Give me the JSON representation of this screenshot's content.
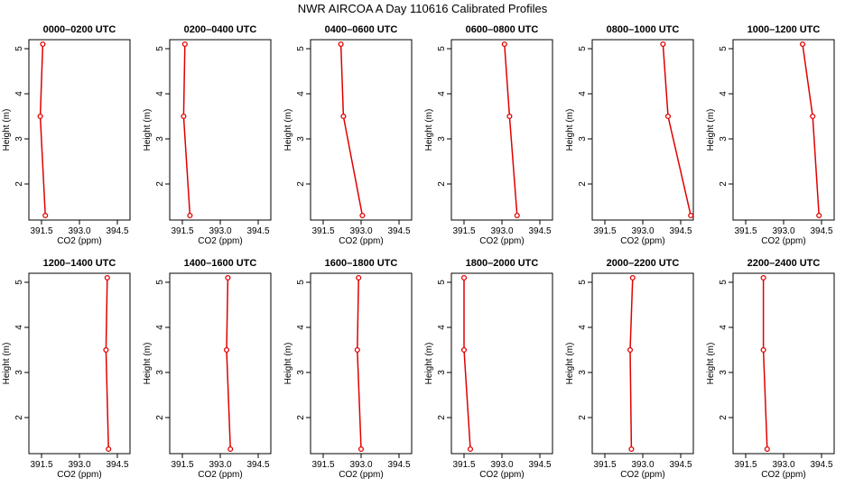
{
  "title": "NWR AIRCOA A  Day 110616  Calibrated Profiles",
  "series_color": "#e00000",
  "chart_data": [
    {
      "type": "line",
      "title": "0000–0200 UTC",
      "xlabel": "CO2 (ppm)",
      "ylabel": "Height (m)",
      "xlim": [
        391.0,
        395.0
      ],
      "ylim": [
        1.2,
        5.2
      ],
      "xticks": [
        "391.5",
        "393.0",
        "394.5"
      ],
      "yticks": [
        "2",
        "3",
        "4",
        "5"
      ],
      "grid": false,
      "x": [
        391.55,
        391.45,
        391.65
      ],
      "y": [
        5.1,
        3.5,
        1.3
      ]
    },
    {
      "type": "line",
      "title": "0200–0400 UTC",
      "xlabel": "CO2 (ppm)",
      "ylabel": "Height (m)",
      "xlim": [
        391.0,
        395.0
      ],
      "ylim": [
        1.2,
        5.2
      ],
      "xticks": [
        "391.5",
        "393.0",
        "394.5"
      ],
      "yticks": [
        "2",
        "3",
        "4",
        "5"
      ],
      "grid": false,
      "x": [
        391.6,
        391.55,
        391.8
      ],
      "y": [
        5.1,
        3.5,
        1.3
      ]
    },
    {
      "type": "line",
      "title": "0400–0600 UTC",
      "xlabel": "CO2 (ppm)",
      "ylabel": "Height (m)",
      "xlim": [
        391.0,
        395.0
      ],
      "ylim": [
        1.2,
        5.2
      ],
      "xticks": [
        "391.5",
        "393.0",
        "394.5"
      ],
      "yticks": [
        "2",
        "3",
        "4",
        "5"
      ],
      "grid": false,
      "x": [
        392.2,
        392.3,
        393.05
      ],
      "y": [
        5.1,
        3.5,
        1.3
      ]
    },
    {
      "type": "line",
      "title": "0600–0800 UTC",
      "xlabel": "CO2 (ppm)",
      "ylabel": "Height (m)",
      "xlim": [
        391.0,
        395.0
      ],
      "ylim": [
        1.2,
        5.2
      ],
      "xticks": [
        "391.5",
        "393.0",
        "394.5"
      ],
      "yticks": [
        "2",
        "3",
        "4",
        "5"
      ],
      "grid": false,
      "x": [
        393.1,
        393.3,
        393.6
      ],
      "y": [
        5.1,
        3.5,
        1.3
      ]
    },
    {
      "type": "line",
      "title": "0800–1000 UTC",
      "xlabel": "CO2 (ppm)",
      "ylabel": "Height (m)",
      "xlim": [
        391.0,
        395.0
      ],
      "ylim": [
        1.2,
        5.2
      ],
      "xticks": [
        "391.5",
        "393.0",
        "394.5"
      ],
      "yticks": [
        "2",
        "3",
        "4",
        "5"
      ],
      "grid": false,
      "x": [
        393.8,
        394.0,
        394.9
      ],
      "y": [
        5.1,
        3.5,
        1.3
      ]
    },
    {
      "type": "line",
      "title": "1000–1200 UTC",
      "xlabel": "CO2 (ppm)",
      "ylabel": "Height (m)",
      "xlim": [
        391.0,
        395.0
      ],
      "ylim": [
        1.2,
        5.2
      ],
      "xticks": [
        "391.5",
        "393.0",
        "394.5"
      ],
      "yticks": [
        "2",
        "3",
        "4",
        "5"
      ],
      "grid": false,
      "x": [
        393.75,
        394.15,
        394.4
      ],
      "y": [
        5.1,
        3.5,
        1.3
      ]
    },
    {
      "type": "line",
      "title": "1200–1400 UTC",
      "xlabel": "CO2 (ppm)",
      "ylabel": "Height (m)",
      "xlim": [
        391.0,
        395.0
      ],
      "ylim": [
        1.2,
        5.2
      ],
      "xticks": [
        "391.5",
        "393.0",
        "394.5"
      ],
      "yticks": [
        "2",
        "3",
        "4",
        "5"
      ],
      "grid": false,
      "x": [
        394.1,
        394.05,
        394.15
      ],
      "y": [
        5.1,
        3.5,
        1.3
      ]
    },
    {
      "type": "line",
      "title": "1400–1600 UTC",
      "xlabel": "CO2 (ppm)",
      "ylabel": "Height (m)",
      "xlim": [
        391.0,
        395.0
      ],
      "ylim": [
        1.2,
        5.2
      ],
      "xticks": [
        "391.5",
        "393.0",
        "394.5"
      ],
      "yticks": [
        "2",
        "3",
        "4",
        "5"
      ],
      "grid": false,
      "x": [
        393.3,
        393.25,
        393.4
      ],
      "y": [
        5.1,
        3.5,
        1.3
      ]
    },
    {
      "type": "line",
      "title": "1600–1800 UTC",
      "xlabel": "CO2 (ppm)",
      "ylabel": "Height (m)",
      "xlim": [
        391.0,
        395.0
      ],
      "ylim": [
        1.2,
        5.2
      ],
      "xticks": [
        "391.5",
        "393.0",
        "394.5"
      ],
      "yticks": [
        "2",
        "3",
        "4",
        "5"
      ],
      "grid": false,
      "x": [
        392.9,
        392.85,
        393.0
      ],
      "y": [
        5.1,
        3.5,
        1.3
      ]
    },
    {
      "type": "line",
      "title": "1800–2000 UTC",
      "xlabel": "CO2 (ppm)",
      "ylabel": "Height (m)",
      "xlim": [
        391.0,
        395.0
      ],
      "ylim": [
        1.2,
        5.2
      ],
      "xticks": [
        "391.5",
        "393.0",
        "394.5"
      ],
      "yticks": [
        "2",
        "3",
        "4",
        "5"
      ],
      "grid": false,
      "x": [
        391.5,
        391.5,
        391.75
      ],
      "y": [
        5.1,
        3.5,
        1.3
      ]
    },
    {
      "type": "line",
      "title": "2000–2200 UTC",
      "xlabel": "CO2 (ppm)",
      "ylabel": "Height (m)",
      "xlim": [
        391.0,
        395.0
      ],
      "ylim": [
        1.2,
        5.2
      ],
      "xticks": [
        "391.5",
        "393.0",
        "394.5"
      ],
      "yticks": [
        "2",
        "3",
        "4",
        "5"
      ],
      "grid": false,
      "x": [
        392.6,
        392.5,
        392.55
      ],
      "y": [
        5.1,
        3.5,
        1.3
      ]
    },
    {
      "type": "line",
      "title": "2200–2400 UTC",
      "xlabel": "CO2 (ppm)",
      "ylabel": "Height (m)",
      "xlim": [
        391.0,
        395.0
      ],
      "ylim": [
        1.2,
        5.2
      ],
      "xticks": [
        "391.5",
        "393.0",
        "394.5"
      ],
      "yticks": [
        "2",
        "3",
        "4",
        "5"
      ],
      "grid": false,
      "x": [
        392.2,
        392.2,
        392.35
      ],
      "y": [
        5.1,
        3.5,
        1.3
      ]
    }
  ]
}
